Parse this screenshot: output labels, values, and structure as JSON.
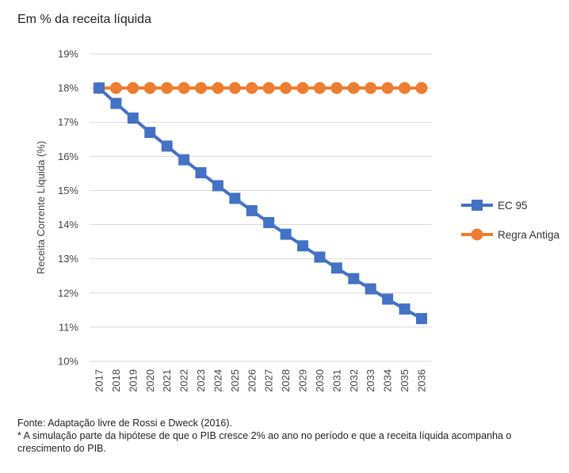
{
  "chart_data": {
    "type": "line",
    "title": "Em % da receita líquida",
    "ylabel": "Receita Corrente Líquida (%)",
    "xlabel": "",
    "ylim": [
      10,
      19
    ],
    "yticks": [
      "10%",
      "11%",
      "12%",
      "13%",
      "14%",
      "15%",
      "16%",
      "17%",
      "18%",
      "19%"
    ],
    "categories": [
      "2017",
      "2018",
      "2019",
      "2020",
      "2021",
      "2022",
      "2023",
      "2024",
      "2025",
      "2026",
      "2027",
      "2028",
      "2029",
      "2030",
      "2031",
      "2032",
      "2033",
      "2034",
      "2035",
      "2036"
    ],
    "series": [
      {
        "name": "EC 95",
        "color": "#4472C4",
        "marker": "square",
        "values": [
          18.0,
          17.55,
          17.12,
          16.7,
          16.3,
          15.9,
          15.52,
          15.14,
          14.77,
          14.41,
          14.06,
          13.72,
          13.38,
          13.05,
          12.73,
          12.42,
          12.12,
          11.82,
          11.53,
          11.25
        ]
      },
      {
        "name": "Regra Antiga",
        "color": "#ED7D31",
        "marker": "circle",
        "values": [
          18,
          18,
          18,
          18,
          18,
          18,
          18,
          18,
          18,
          18,
          18,
          18,
          18,
          18,
          18,
          18,
          18,
          18,
          18,
          18
        ]
      }
    ],
    "grid": "horizontal",
    "legend": "right"
  },
  "footnote": {
    "source": "Fonte: Adaptação livre de Rossi e Dweck (2016).",
    "note": "* A simulação parte da hipótese de que o PIB cresce 2% ao ano no período e que a receita líquida acompanha o crescimento do PIB."
  }
}
